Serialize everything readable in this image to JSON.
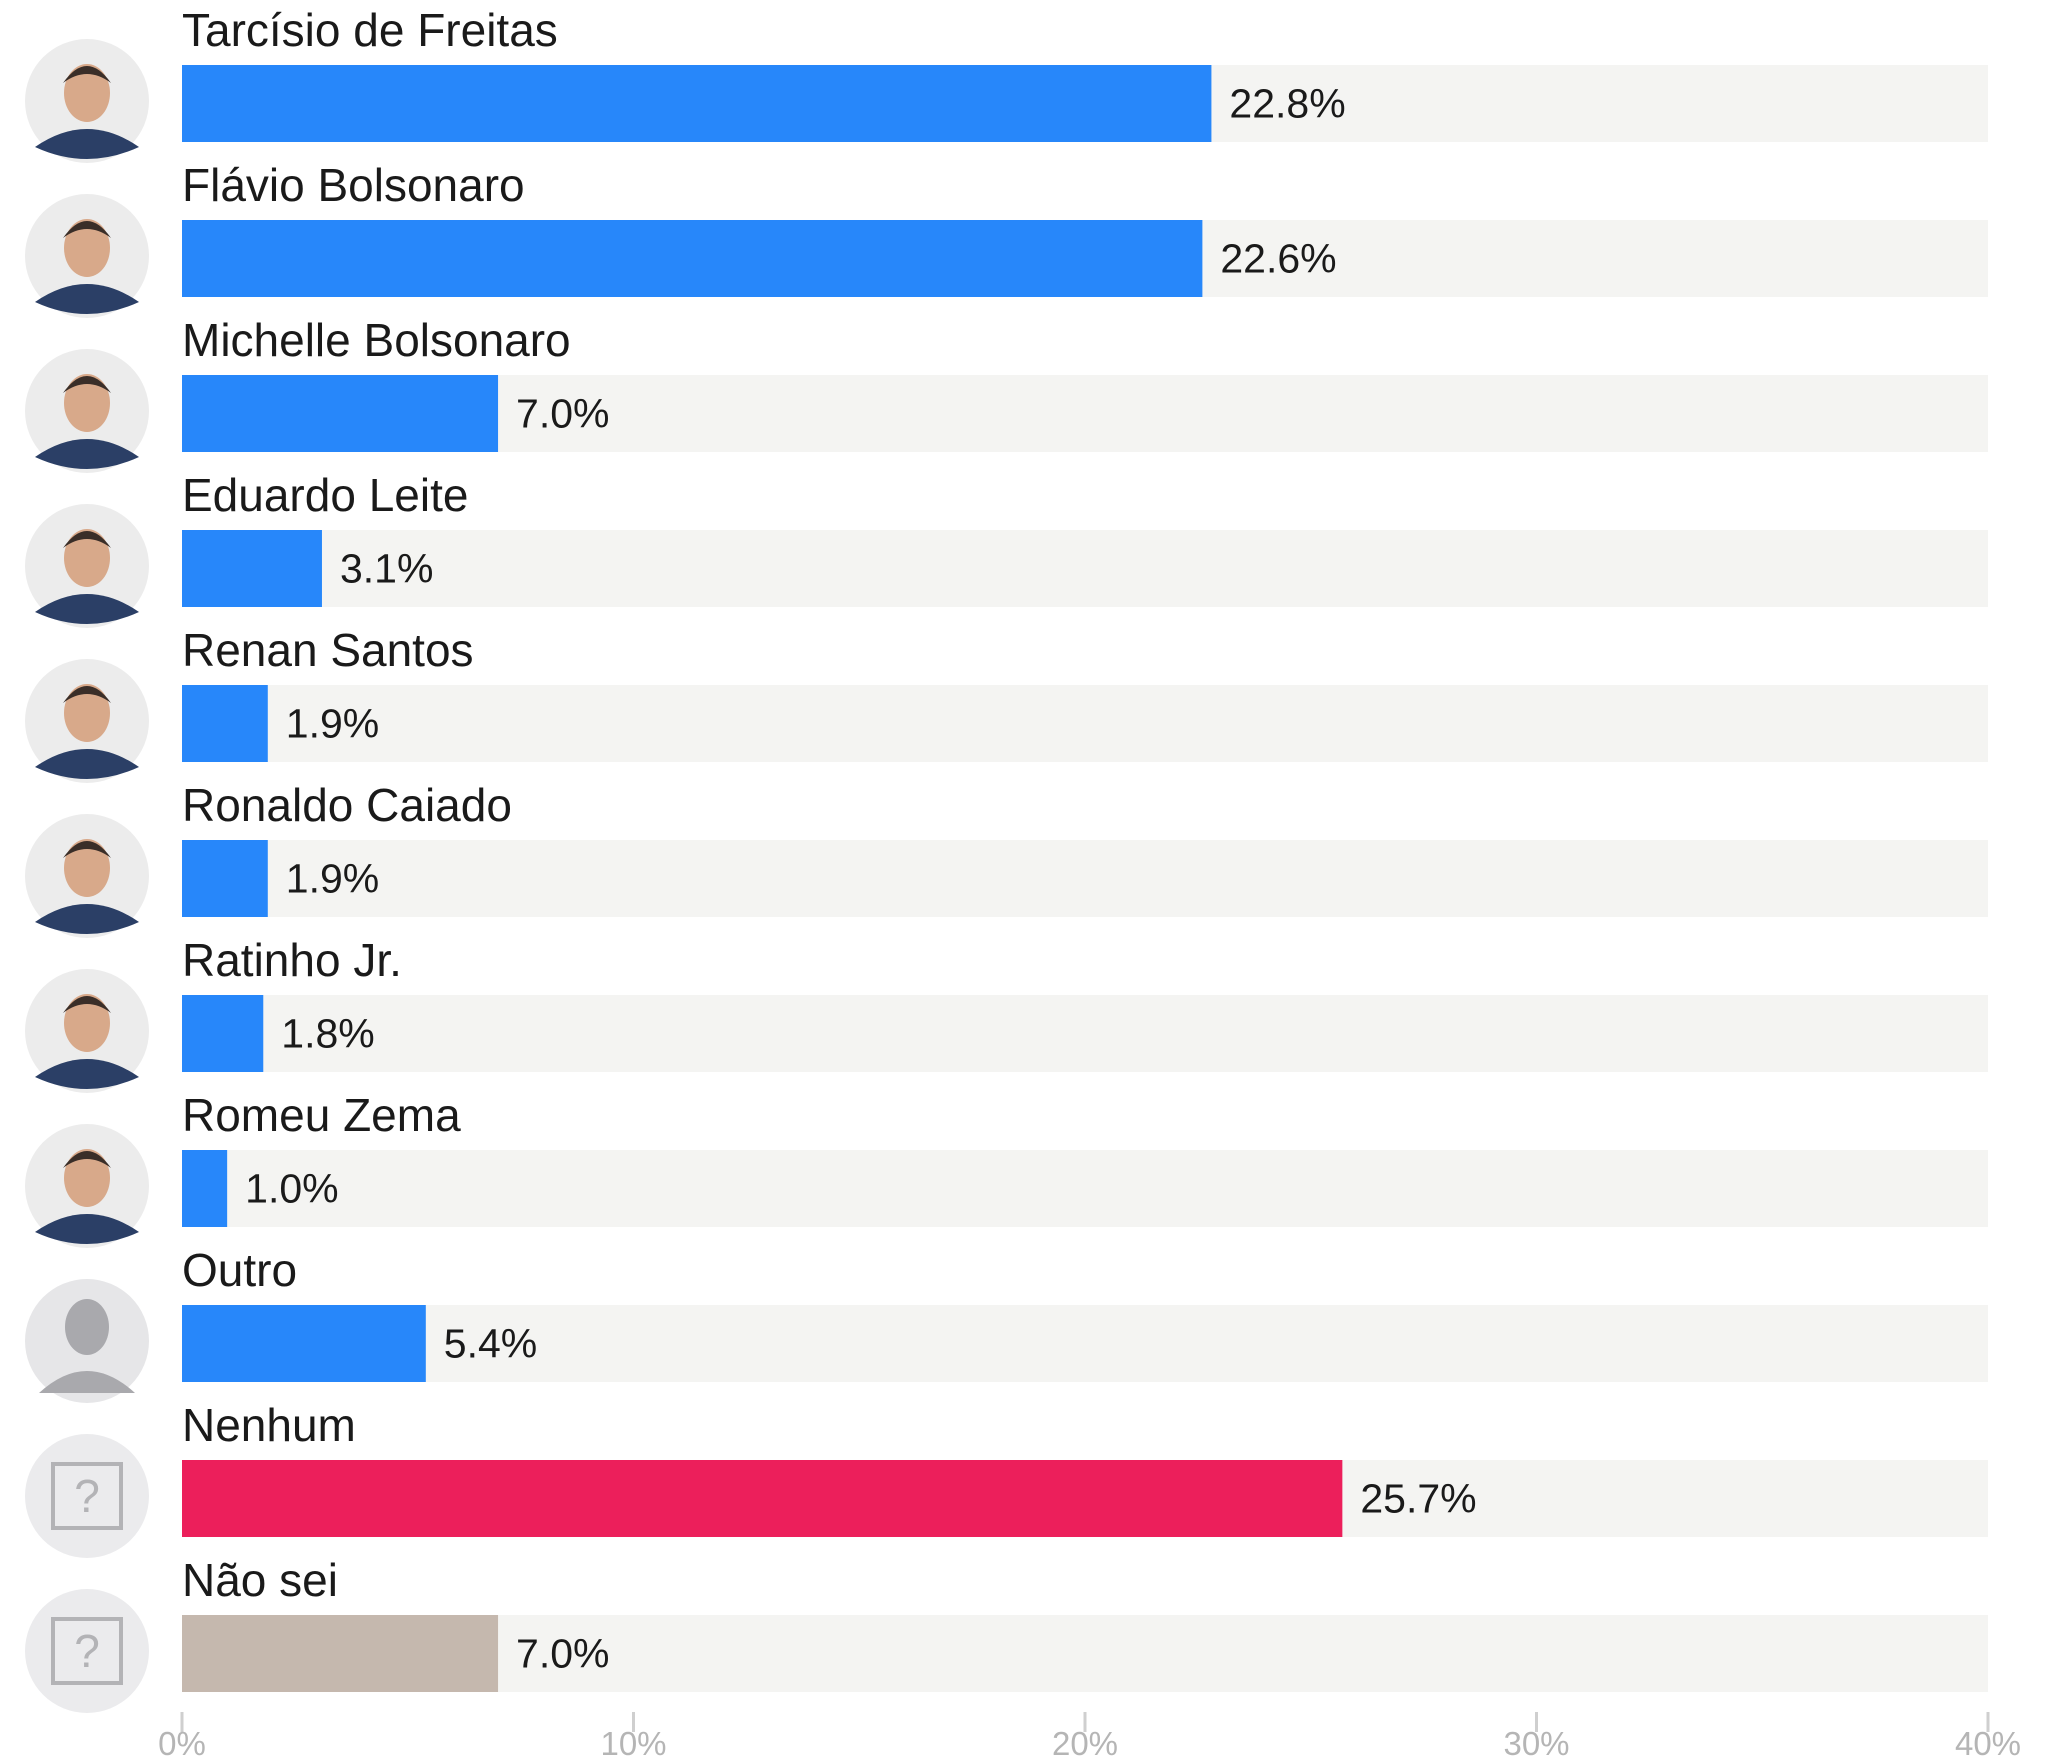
{
  "chart_data": {
    "type": "bar",
    "orientation": "horizontal",
    "xlim": [
      0,
      40
    ],
    "x_ticks": [
      0,
      10,
      20,
      30,
      40
    ],
    "x_tick_labels": [
      "0%",
      "10%",
      "20%",
      "30%",
      "40%"
    ],
    "grid": false,
    "legend": "none",
    "categories": [
      "Tarcísio de Freitas",
      "Flávio Bolsonaro",
      "Michelle Bolsonaro",
      "Eduardo Leite",
      "Renan Santos",
      "Ronaldo Caiado",
      "Ratinho Jr.",
      "Romeu Zema",
      "Outro",
      "Nenhum",
      "Não sei"
    ],
    "values": [
      22.8,
      22.6,
      7.0,
      3.1,
      1.9,
      1.9,
      1.8,
      1.0,
      5.4,
      25.7,
      7.0
    ],
    "value_labels": [
      "22.8%",
      "22.6%",
      "7.0%",
      "3.1%",
      "1.9%",
      "1.9%",
      "1.8%",
      "1.0%",
      "5.4%",
      "25.7%",
      "7.0%"
    ],
    "bar_colors": [
      "#2787fa",
      "#2787fa",
      "#2787fa",
      "#2787fa",
      "#2787fa",
      "#2787fa",
      "#2787fa",
      "#2787fa",
      "#2787fa",
      "#ec1f5b",
      "#c5b8ae"
    ],
    "track_color": "#f4f4f2",
    "avatar_icons": [
      "person-photo",
      "person-photo",
      "person-photo",
      "person-photo",
      "person-photo",
      "person-photo",
      "person-photo",
      "person-photo",
      "person-silhouette-icon",
      "question-box-icon",
      "question-box-icon"
    ]
  }
}
